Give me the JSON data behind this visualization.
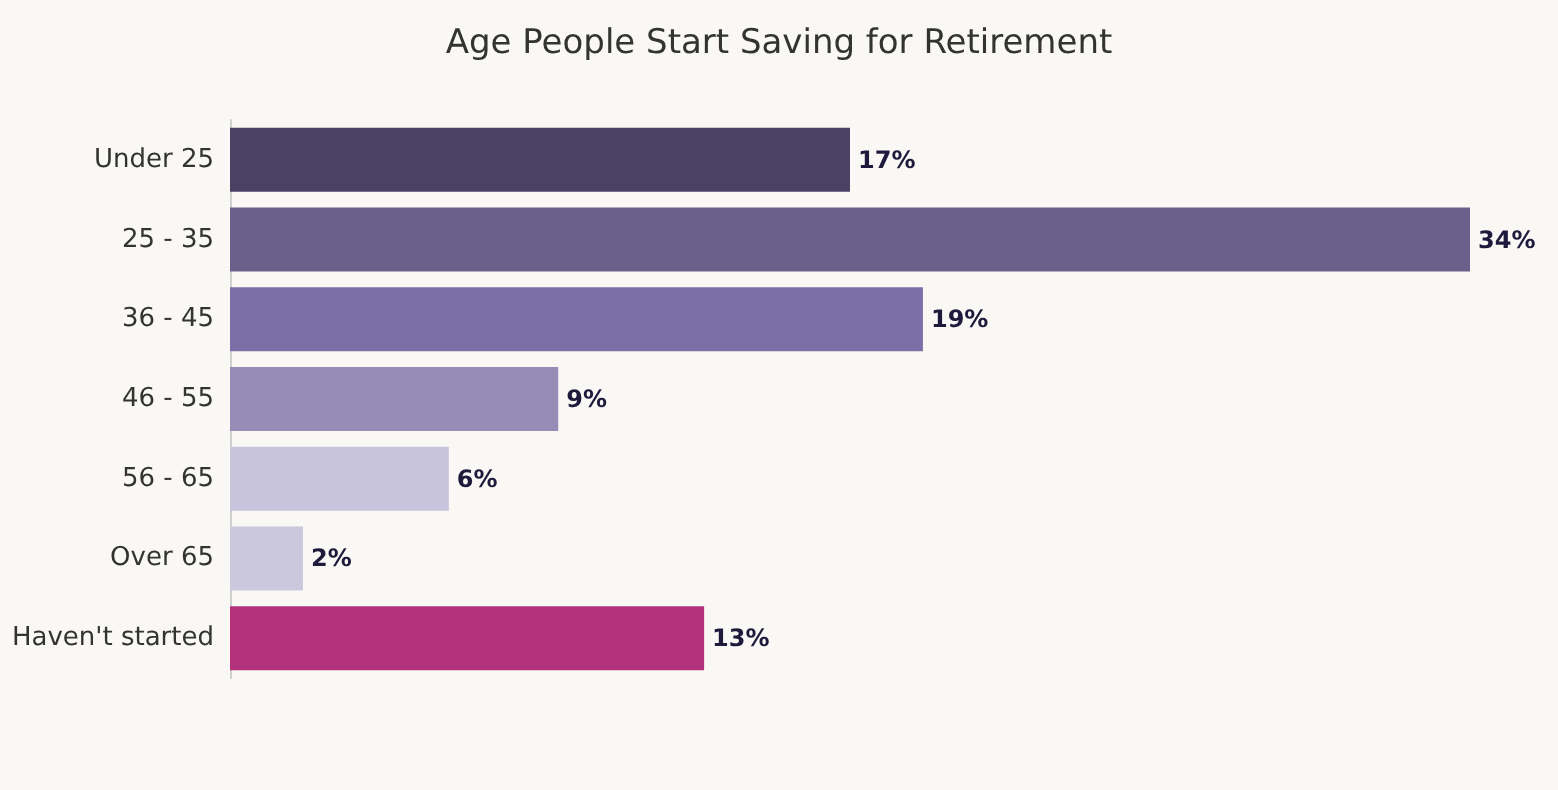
{
  "chart_data": {
    "type": "bar",
    "orientation": "horizontal",
    "title": "Age People Start Saving for Retirement",
    "categories": [
      "Under 25",
      "25 - 35",
      "36 - 45",
      "46 - 55",
      "56 - 65",
      "Over 65",
      "Haven't started"
    ],
    "values": [
      17,
      34,
      19,
      9,
      6,
      2,
      13
    ],
    "colors": [
      "#4a4265",
      "#6a608c",
      "#7a6fa6",
      "#958db6",
      "#c8c4db",
      "#cbc7dd",
      "#b3317a"
    ],
    "value_labels": [
      "17%",
      "34%",
      "19%",
      "9%",
      "6%",
      "2%",
      "13%"
    ]
  }
}
